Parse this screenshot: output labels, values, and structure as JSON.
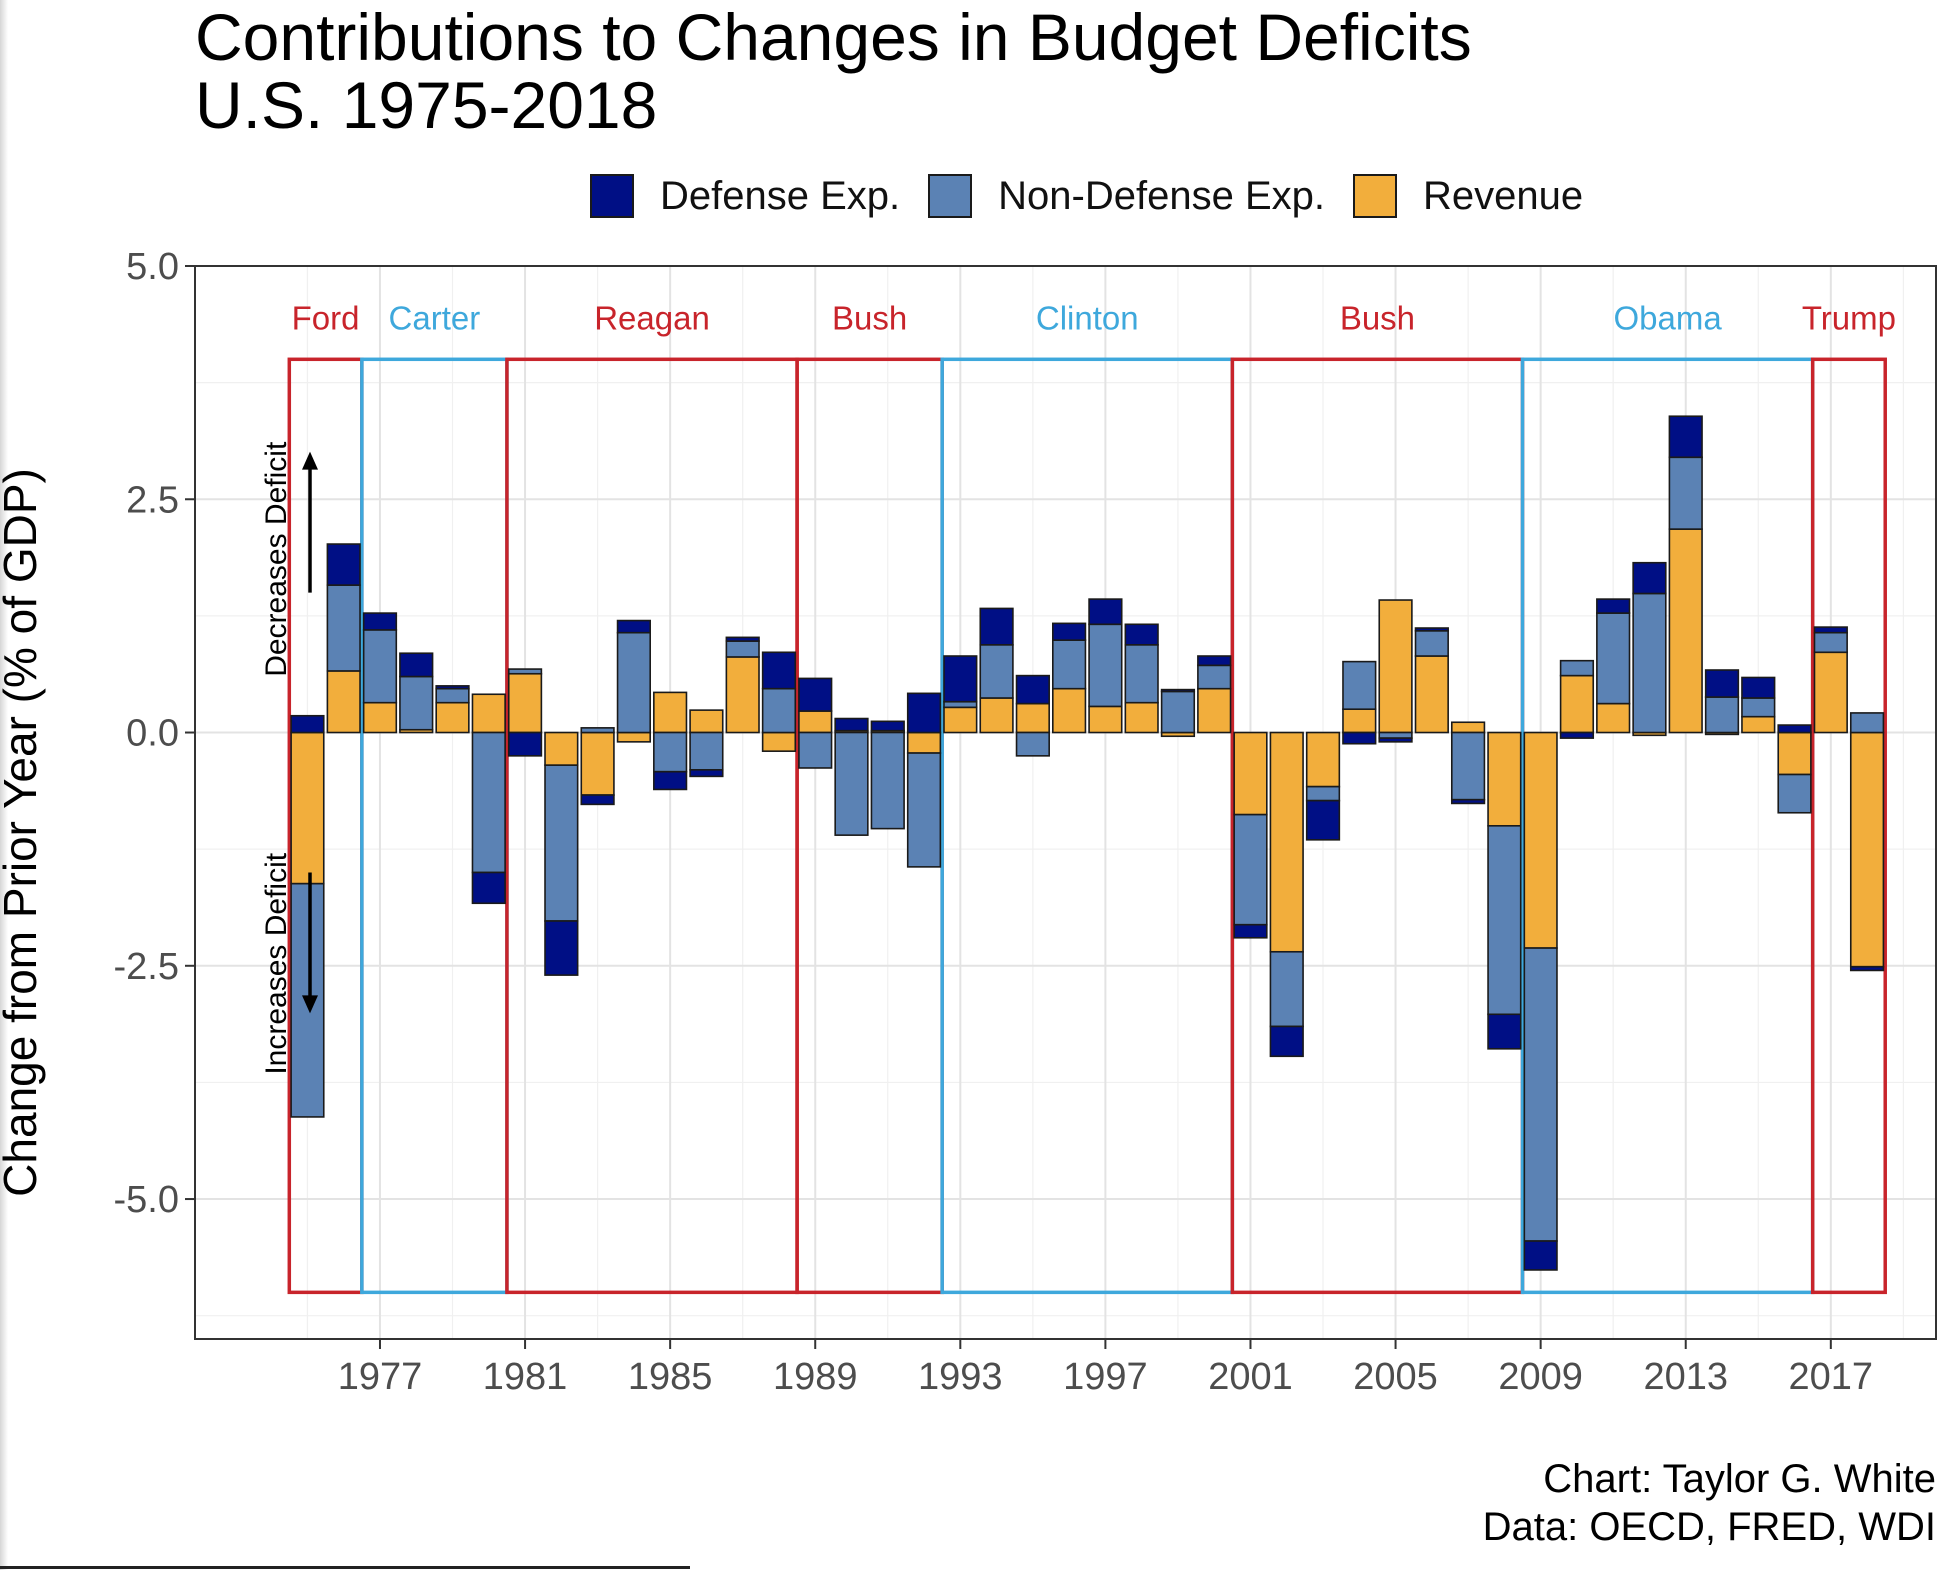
{
  "chart_data": {
    "type": "bar",
    "stacked": true,
    "title": "Contributions to Changes in Budget Deficits",
    "subtitle": "U.S. 1975-2018",
    "ylabel": "Change from Prior Year (% of GDP)",
    "xlabel": "",
    "ylim": [
      -6.5,
      5.0
    ],
    "xlim": [
      1971.9,
      2019.9
    ],
    "yticks": [
      5.0,
      2.5,
      0.0,
      -2.5,
      -5.0
    ],
    "ytick_labels": [
      "5.0",
      "2.5",
      "0.0",
      "-2.5",
      "-5.0"
    ],
    "xticks": [
      1977,
      1981,
      1985,
      1989,
      1993,
      1997,
      2001,
      2005,
      2009,
      2013,
      2017
    ],
    "xtick_labels": [
      "1977",
      "1981",
      "1985",
      "1989",
      "1993",
      "1997",
      "2001",
      "2005",
      "2009",
      "2013",
      "2017"
    ],
    "grid": true,
    "legend_position": "top",
    "colors": {
      "defense": "#000f85",
      "nondefense": "#5b82b4",
      "revenue": "#f2ae3c",
      "republican": "#c8242b",
      "democrat": "#3ea8dc",
      "bar_outline": "#1a1a1a"
    },
    "series": [
      {
        "name": "Defense Exp.",
        "key": "defense"
      },
      {
        "name": "Non-Defense Exp.",
        "key": "nondefense"
      },
      {
        "name": "Revenue",
        "key": "revenue"
      }
    ],
    "years": [
      1975,
      1976,
      1977,
      1978,
      1979,
      1980,
      1981,
      1982,
      1983,
      1984,
      1985,
      1986,
      1987,
      1988,
      1989,
      1990,
      1991,
      1992,
      1993,
      1994,
      1995,
      1996,
      1997,
      1998,
      1999,
      2000,
      2001,
      2002,
      2003,
      2004,
      2005,
      2006,
      2007,
      2008,
      2009,
      2010,
      2011,
      2012,
      2013,
      2014,
      2015,
      2016,
      2017,
      2018
    ],
    "data": [
      {
        "year": 1975,
        "revenue": -1.62,
        "nondefense": -2.5,
        "defense": 0.18
      },
      {
        "year": 1976,
        "revenue": 0.66,
        "nondefense": 0.92,
        "defense": 0.44
      },
      {
        "year": 1977,
        "revenue": 0.32,
        "nondefense": 0.78,
        "defense": 0.18
      },
      {
        "year": 1978,
        "revenue": 0.03,
        "nondefense": 0.57,
        "defense": 0.25
      },
      {
        "year": 1979,
        "revenue": 0.32,
        "nondefense": 0.15,
        "defense": 0.03
      },
      {
        "year": 1980,
        "revenue": 0.41,
        "nondefense": -1.5,
        "defense": -0.33
      },
      {
        "year": 1981,
        "revenue": 0.63,
        "nondefense": 0.05,
        "defense": -0.25
      },
      {
        "year": 1982,
        "revenue": -0.35,
        "nondefense": -1.67,
        "defense": -0.58
      },
      {
        "year": 1983,
        "revenue": -0.67,
        "nondefense": 0.05,
        "defense": -0.1
      },
      {
        "year": 1984,
        "revenue": -0.1,
        "nondefense": 1.07,
        "defense": 0.13
      },
      {
        "year": 1985,
        "revenue": 0.43,
        "nondefense": -0.42,
        "defense": -0.19
      },
      {
        "year": 1986,
        "revenue": 0.24,
        "nondefense": -0.4,
        "defense": -0.07
      },
      {
        "year": 1987,
        "revenue": 0.81,
        "nondefense": 0.17,
        "defense": 0.04
      },
      {
        "year": 1988,
        "revenue": -0.2,
        "nondefense": 0.47,
        "defense": 0.39
      },
      {
        "year": 1989,
        "revenue": 0.23,
        "nondefense": -0.38,
        "defense": 0.35
      },
      {
        "year": 1990,
        "revenue": 0.02,
        "nondefense": -1.1,
        "defense": 0.13
      },
      {
        "year": 1991,
        "revenue": 0.02,
        "nondefense": -1.03,
        "defense": 0.1
      },
      {
        "year": 1992,
        "revenue": -0.22,
        "nondefense": -1.22,
        "defense": 0.42
      },
      {
        "year": 1993,
        "revenue": 0.27,
        "nondefense": 0.06,
        "defense": 0.49
      },
      {
        "year": 1994,
        "revenue": 0.37,
        "nondefense": 0.57,
        "defense": 0.39
      },
      {
        "year": 1995,
        "revenue": 0.31,
        "nondefense": -0.25,
        "defense": 0.3
      },
      {
        "year": 1996,
        "revenue": 0.47,
        "nondefense": 0.52,
        "defense": 0.18
      },
      {
        "year": 1997,
        "revenue": 0.28,
        "nondefense": 0.88,
        "defense": 0.27
      },
      {
        "year": 1998,
        "revenue": 0.32,
        "nondefense": 0.62,
        "defense": 0.22
      },
      {
        "year": 1999,
        "revenue": -0.04,
        "nondefense": 0.44,
        "defense": 0.02
      },
      {
        "year": 2000,
        "revenue": 0.47,
        "nondefense": 0.25,
        "defense": 0.1
      },
      {
        "year": 2001,
        "revenue": -0.88,
        "nondefense": -1.18,
        "defense": -0.14
      },
      {
        "year": 2002,
        "revenue": -2.35,
        "nondefense": -0.8,
        "defense": -0.32
      },
      {
        "year": 2003,
        "revenue": -0.58,
        "nondefense": -0.15,
        "defense": -0.42
      },
      {
        "year": 2004,
        "revenue": 0.25,
        "nondefense": 0.51,
        "defense": -0.12
      },
      {
        "year": 2005,
        "revenue": 1.42,
        "nondefense": -0.06,
        "defense": -0.04
      },
      {
        "year": 2006,
        "revenue": 0.82,
        "nondefense": 0.27,
        "defense": 0.03
      },
      {
        "year": 2007,
        "revenue": 0.11,
        "nondefense": -0.72,
        "defense": -0.04
      },
      {
        "year": 2008,
        "revenue": -1.0,
        "nondefense": -2.02,
        "defense": -0.37
      },
      {
        "year": 2009,
        "revenue": -2.31,
        "nondefense": -3.14,
        "defense": -0.31
      },
      {
        "year": 2010,
        "revenue": 0.61,
        "nondefense": 0.16,
        "defense": -0.06
      },
      {
        "year": 2011,
        "revenue": 0.31,
        "nondefense": 0.97,
        "defense": 0.15
      },
      {
        "year": 2012,
        "revenue": -0.03,
        "nondefense": 1.49,
        "defense": 0.33
      },
      {
        "year": 2013,
        "revenue": 2.18,
        "nondefense": 0.77,
        "defense": 0.44
      },
      {
        "year": 2014,
        "revenue": -0.02,
        "nondefense": 0.38,
        "defense": 0.29
      },
      {
        "year": 2015,
        "revenue": 0.17,
        "nondefense": 0.2,
        "defense": 0.22
      },
      {
        "year": 2016,
        "revenue": -0.45,
        "nondefense": -0.41,
        "defense": 0.08
      },
      {
        "year": 2017,
        "revenue": 0.86,
        "nondefense": 0.21,
        "defense": 0.06
      },
      {
        "year": 2018,
        "revenue": -2.51,
        "nondefense": 0.21,
        "defense": -0.04
      }
    ],
    "administrations": [
      {
        "name": "Ford",
        "party": "republican",
        "start": 1975,
        "end": 1976
      },
      {
        "name": "Carter",
        "party": "democrat",
        "start": 1977,
        "end": 1980
      },
      {
        "name": "Reagan",
        "party": "republican",
        "start": 1981,
        "end": 1988
      },
      {
        "name": "Bush",
        "party": "republican",
        "start": 1989,
        "end": 1992
      },
      {
        "name": "Clinton",
        "party": "democrat",
        "start": 1993,
        "end": 2000
      },
      {
        "name": "Bush",
        "party": "republican",
        "start": 2001,
        "end": 2008
      },
      {
        "name": "Obama",
        "party": "democrat",
        "start": 2009,
        "end": 2016
      },
      {
        "name": "Trump",
        "party": "republican",
        "start": 2017,
        "end": 2018
      }
    ],
    "administration_box_range": [
      -6.0,
      4.0
    ],
    "annotations": [
      {
        "text": "Decreases Deficit",
        "arrow": "up"
      },
      {
        "text": "Increases Deficit",
        "arrow": "down"
      }
    ]
  },
  "credit": {
    "line1": "Chart: Taylor G. White",
    "line2": "Data: OECD, FRED, WDI"
  }
}
